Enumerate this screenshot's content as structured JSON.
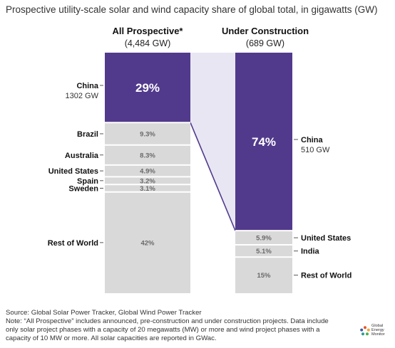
{
  "title": "Prospective utility-scale solar and wind capacity share of global total, in gigawatts (GW)",
  "columns": {
    "left": {
      "heading": "All Prospective*",
      "total": "(4,484 GW)"
    },
    "right": {
      "heading": "Under Construction",
      "total": "(689 GW)"
    }
  },
  "chart_data": {
    "type": "bar",
    "layout": "two stacked 100% columns with connector linking China segments",
    "colors": {
      "china": "#513a8c",
      "other": "#d9d9d9",
      "connector": "#e9e6f3",
      "divider": "#ffffff"
    },
    "columns": [
      {
        "name": "All Prospective*",
        "total_label": "(4,484 GW)",
        "total_gw": 4484,
        "segments": [
          {
            "label": "China",
            "sublabel": "1302 GW",
            "value": 29,
            "value_label": "29%",
            "highlight": true
          },
          {
            "label": "Brazil",
            "value": 9.3,
            "value_label": "9.3%"
          },
          {
            "label": "Australia",
            "value": 8.3,
            "value_label": "8.3%"
          },
          {
            "label": "United States",
            "value": 4.9,
            "value_label": "4.9%"
          },
          {
            "label": "Spain",
            "value": 3.2,
            "value_label": "3.2%"
          },
          {
            "label": "Sweden",
            "value": 3.1,
            "value_label": "3.1%"
          },
          {
            "label": "Rest of World",
            "value": 42,
            "value_label": "42%"
          }
        ]
      },
      {
        "name": "Under Construction",
        "total_label": "(689 GW)",
        "total_gw": 689,
        "segments": [
          {
            "label": "China",
            "sublabel": "510 GW",
            "value": 74,
            "value_label": "74%",
            "highlight": true
          },
          {
            "label": "United States",
            "value": 5.9,
            "value_label": "5.9%"
          },
          {
            "label": "India",
            "value": 5.1,
            "value_label": "5.1%"
          },
          {
            "label": "Rest of World",
            "value": 15,
            "value_label": "15%"
          }
        ]
      }
    ]
  },
  "source": "Source: Global Solar Power Tracker, Global Wind Power Tracker",
  "note_lines": [
    "Note: “All Prospective” includes announced, pre-construction and under construction projects. Data include",
    "only solar project phases with a capacity of 20 megawatts (MW) or more and wind project phases with a",
    "capacity of 10 MW or more. All solar capacities are reported in GWac."
  ],
  "logo": {
    "line1": "Global",
    "line2": "Energy",
    "line3": "Monitor"
  }
}
